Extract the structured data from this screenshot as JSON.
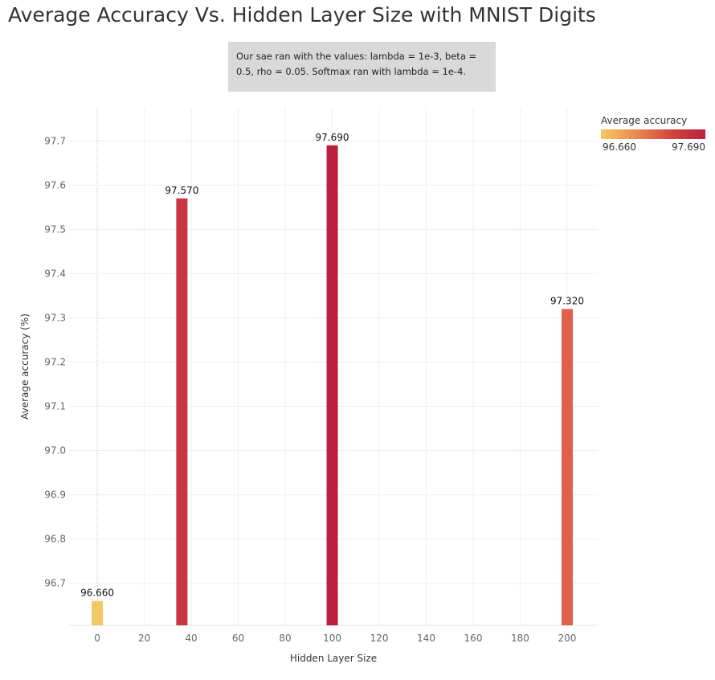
{
  "title": "Average Accuracy Vs. Hidden Layer Size with MNIST Digits",
  "note": "Our sae ran with the values: lambda = 1e-3, beta = 0.5, rho = 0.05. Softmax ran with lambda = 1e-4.",
  "legend": {
    "title": "Average accuracy",
    "min_label": "96.660",
    "max_label": "97.690",
    "colors": [
      "#f2c863",
      "#eb8a4f",
      "#d3463e",
      "#b9213d"
    ]
  },
  "chart_data": {
    "type": "bar",
    "xlabel": "Hidden Layer Size",
    "ylabel": "Average accuracy (%)",
    "x": [
      0,
      36,
      100,
      200
    ],
    "values": [
      96.66,
      97.57,
      97.69,
      97.32
    ],
    "value_labels": [
      "96.660",
      "97.570",
      "97.690",
      "97.320"
    ],
    "bar_colors": [
      "#f2c863",
      "#c93642",
      "#bb1f3e",
      "#e0604b"
    ],
    "x_ticks": [
      0,
      20,
      40,
      60,
      80,
      100,
      120,
      140,
      160,
      180,
      200
    ],
    "y_ticks": [
      "96.7",
      "96.8",
      "96.9",
      "97.0",
      "97.1",
      "97.2",
      "97.3",
      "97.4",
      "97.5",
      "97.6",
      "97.7"
    ],
    "xlim": [
      -12,
      213
    ],
    "ylim": [
      96.605,
      97.775
    ],
    "grid": true
  }
}
